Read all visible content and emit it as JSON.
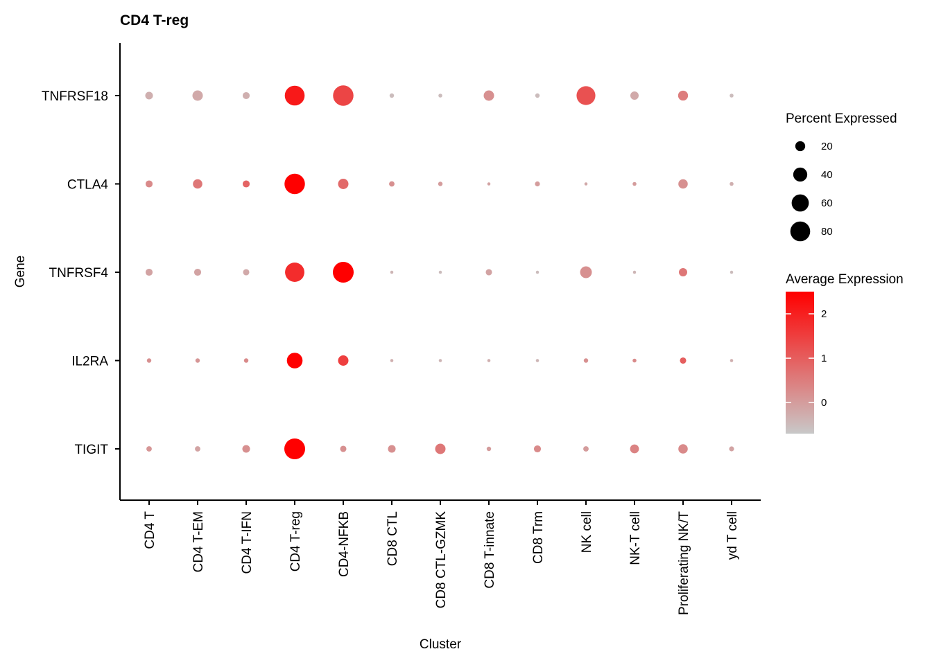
{
  "chart_data": {
    "type": "dotplot",
    "title": "CD4 T-reg",
    "xlabel": "Cluster",
    "ylabel": "Gene",
    "categories": [
      "CD4 T",
      "CD4 T-EM",
      "CD4 T-IFN",
      "CD4 T-reg",
      "CD4-NFKB",
      "CD8 CTL",
      "CD8 CTL-GZMK",
      "CD8 T-innate",
      "CD8 Trm",
      "NK cell",
      "NK-T cell",
      "Proliferating NK/T",
      "yd T cell"
    ],
    "genes": [
      "TNFRSF18",
      "CTLA4",
      "TNFRSF4",
      "IL2RA",
      "TIGIT"
    ],
    "series": [
      {
        "gene": "TNFRSF18",
        "pct_expressed": [
          12,
          22,
          10,
          80,
          85,
          4,
          3,
          22,
          4,
          72,
          14,
          20,
          3
        ],
        "avg_expression": [
          -0.3,
          -0.2,
          -0.3,
          2.1,
          1.4,
          -0.5,
          -0.5,
          0.2,
          -0.5,
          1.2,
          -0.2,
          0.5,
          -0.5
        ]
      },
      {
        "gene": "CTLA4",
        "pct_expressed": [
          10,
          18,
          10,
          85,
          22,
          6,
          4,
          2,
          5,
          2,
          3,
          18,
          3
        ],
        "avg_expression": [
          0.3,
          0.6,
          0.9,
          2.6,
          0.8,
          0.2,
          0.0,
          -0.1,
          0.0,
          -0.2,
          0.0,
          0.2,
          -0.3
        ]
      },
      {
        "gene": "TNFRSF4",
        "pct_expressed": [
          10,
          10,
          8,
          76,
          88,
          2,
          2,
          8,
          2,
          28,
          2,
          14,
          2
        ],
        "avg_expression": [
          -0.1,
          -0.1,
          -0.2,
          1.8,
          2.5,
          -0.4,
          -0.5,
          -0.1,
          -0.5,
          0.2,
          -0.4,
          0.6,
          -0.5
        ]
      },
      {
        "gene": "IL2RA",
        "pct_expressed": [
          4,
          4,
          4,
          50,
          22,
          2,
          2,
          2,
          2,
          4,
          3,
          8,
          2
        ],
        "avg_expression": [
          0.2,
          0.1,
          0.3,
          2.6,
          1.5,
          -0.3,
          -0.4,
          -0.3,
          -0.4,
          0.2,
          0.3,
          1.0,
          -0.3
        ]
      },
      {
        "gene": "TIGIT",
        "pct_expressed": [
          6,
          6,
          12,
          88,
          8,
          12,
          22,
          4,
          10,
          6,
          16,
          18,
          5
        ],
        "avg_expression": [
          0.1,
          -0.1,
          0.2,
          2.8,
          0.2,
          0.2,
          0.6,
          0.0,
          0.3,
          0.0,
          0.4,
          0.3,
          -0.1
        ]
      }
    ],
    "size_legend": {
      "title": "Percent Expressed",
      "ticks": [
        20,
        40,
        60,
        80
      ]
    },
    "color_legend": {
      "title": "Average Expression",
      "ticks": [
        0,
        1,
        2
      ],
      "range": [
        -0.7,
        2.5
      ],
      "low_color": "#c8c8c8",
      "high_color": "#ff0000"
    },
    "grid": false
  }
}
